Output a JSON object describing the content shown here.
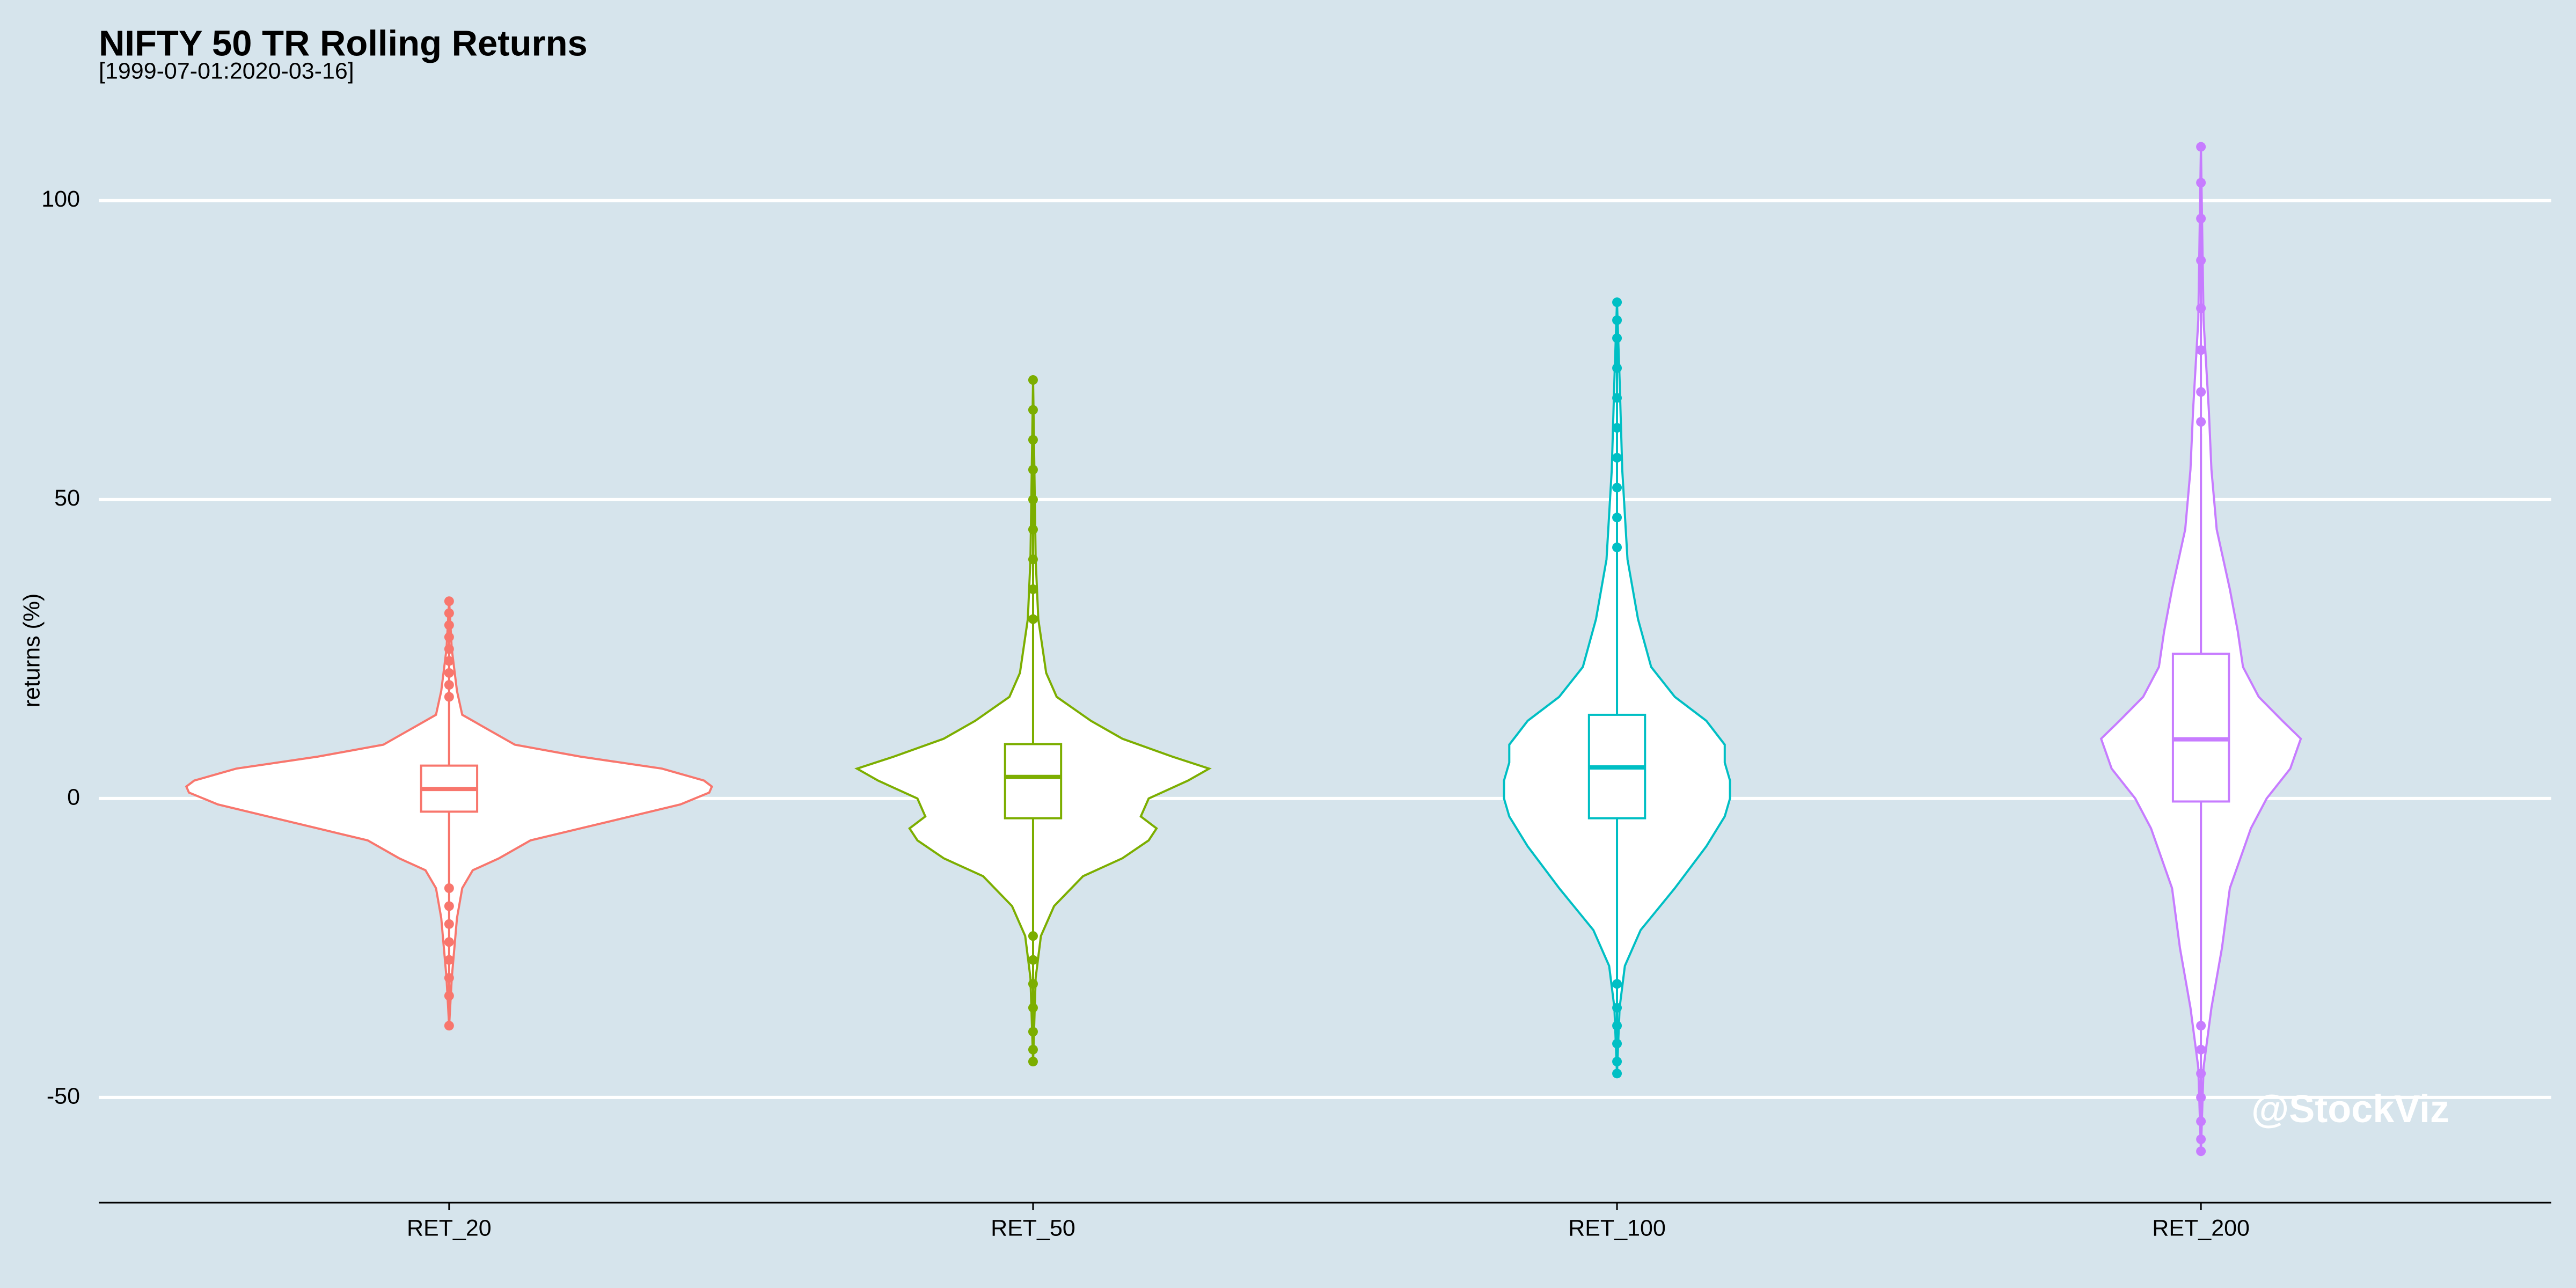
{
  "chart_data": {
    "type": "violin",
    "title": "NIFTY 50 TR Rolling Returns",
    "subtitle": "[1999-07-01:2020-03-16]",
    "y_label": "returns (%)",
    "watermark": "@StockViz",
    "categories": [
      "RET_20",
      "RET_50",
      "RET_100",
      "RET_200"
    ],
    "ylim": [
      -67.6,
      113
    ],
    "yticks": [
      -50,
      0,
      50,
      100
    ],
    "grid": true,
    "groups": [
      {
        "color": "#F8766D",
        "violin": {
          "y": [
            -38,
            -30,
            -20,
            -15,
            -12,
            -10,
            -7,
            -5,
            -3,
            -1,
            1,
            2,
            3,
            5,
            7,
            9,
            12,
            14,
            18,
            25,
            33
          ],
          "density": [
            0,
            0.01,
            0.03,
            0.05,
            0.09,
            0.19,
            0.31,
            0.5,
            0.69,
            0.88,
            0.99,
            1,
            0.97,
            0.81,
            0.5,
            0.25,
            0.13,
            0.05,
            0.03,
            0.01,
            0
          ]
        },
        "box": {
          "whisker_low": -14,
          "q1": -2.2,
          "median": 1.6,
          "q3": 5.5,
          "whisker_high": 16
        },
        "outliers": [
          17,
          19,
          21,
          23,
          25,
          27,
          29,
          31,
          33,
          -15,
          -18,
          -21,
          -24,
          -27,
          -30,
          -33,
          -38
        ]
      },
      {
        "color": "#7CAE00",
        "violin": {
          "y": [
            -44,
            -30,
            -23,
            -18,
            -13,
            -10,
            -7,
            -5,
            -3,
            0,
            3,
            5,
            7,
            10,
            13,
            17,
            21,
            30,
            40,
            70
          ],
          "density": [
            0,
            0.01,
            0.03,
            0.08,
            0.19,
            0.34,
            0.44,
            0.47,
            0.41,
            0.44,
            0.59,
            0.67,
            0.53,
            0.34,
            0.22,
            0.09,
            0.05,
            0.02,
            0.01,
            0
          ]
        },
        "box": {
          "whisker_low": -22,
          "q1": -3.3,
          "median": 3.6,
          "q3": 9.1,
          "whisker_high": 28
        },
        "outliers": [
          30,
          35,
          40,
          45,
          50,
          55,
          60,
          65,
          70,
          -23,
          -27,
          -31,
          -35,
          -39,
          -42,
          -44
        ]
      },
      {
        "color": "#00BFC4",
        "violin": {
          "y": [
            -46,
            -35,
            -28,
            -22,
            -15,
            -8,
            -3,
            0,
            3,
            6,
            9,
            13,
            17,
            22,
            30,
            40,
            55,
            70,
            83
          ],
          "density": [
            0,
            0.01,
            0.03,
            0.09,
            0.22,
            0.34,
            0.41,
            0.43,
            0.43,
            0.41,
            0.41,
            0.34,
            0.22,
            0.13,
            0.08,
            0.04,
            0.02,
            0.01,
            0
          ]
        },
        "box": {
          "whisker_low": -30,
          "q1": -3.3,
          "median": 5.2,
          "q3": 14,
          "whisker_high": 40
        },
        "outliers": [
          42,
          47,
          52,
          57,
          62,
          67,
          72,
          77,
          80,
          83,
          -31,
          -35,
          -38,
          -41,
          -44,
          -46
        ]
      },
      {
        "color": "#C77CFF",
        "violin": {
          "y": [
            -59,
            -45,
            -35,
            -25,
            -15,
            -5,
            0,
            5,
            10,
            13,
            17,
            22,
            28,
            35,
            45,
            55,
            65,
            80,
            109
          ],
          "density": [
            0,
            0.01,
            0.04,
            0.08,
            0.11,
            0.19,
            0.25,
            0.34,
            0.38,
            0.31,
            0.22,
            0.16,
            0.14,
            0.11,
            0.06,
            0.04,
            0.03,
            0.01,
            0
          ]
        },
        "box": {
          "whisker_low": -37,
          "q1": -0.5,
          "median": 9.9,
          "q3": 24.2,
          "whisker_high": 61
        },
        "outliers": [
          63,
          68,
          75,
          82,
          90,
          97,
          103,
          109,
          -38,
          -42,
          -46,
          -50,
          -54,
          -57,
          -59
        ]
      }
    ]
  }
}
